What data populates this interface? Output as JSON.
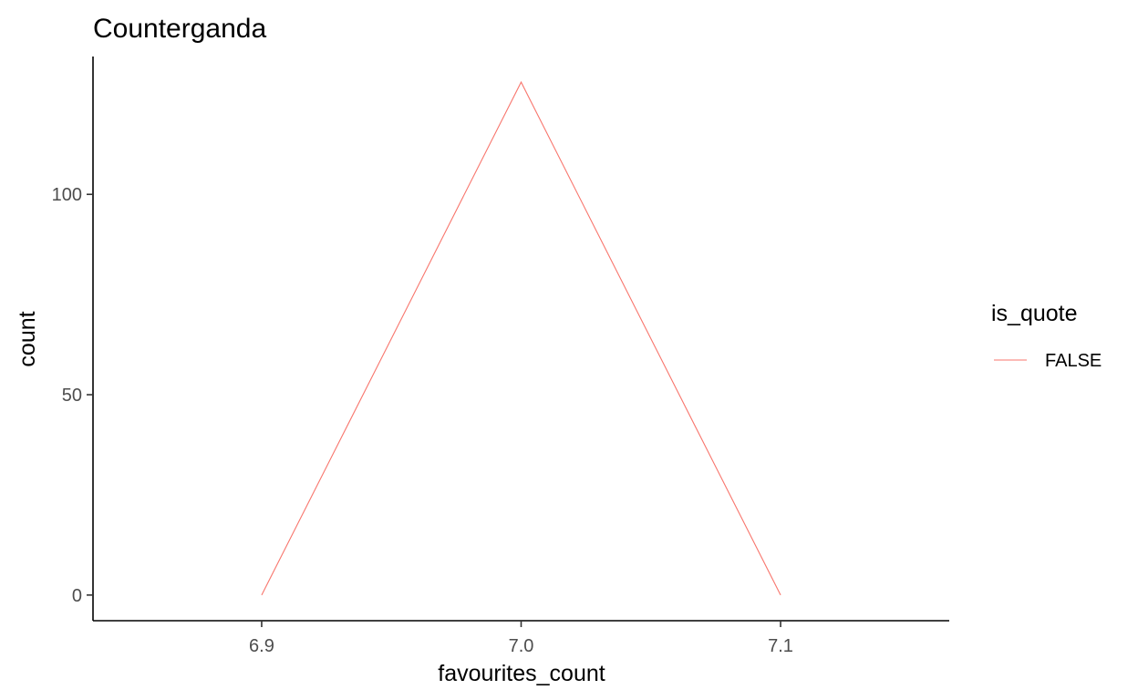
{
  "chart_data": {
    "type": "line",
    "title": "Counterganda",
    "xlabel": "favourites_count",
    "ylabel": "count",
    "xlim": [
      6.835,
      7.165
    ],
    "ylim": [
      -6.4,
      134.4
    ],
    "x_ticks": [
      6.9,
      7.0,
      7.1
    ],
    "x_tick_labels": [
      "6.9",
      "7.0",
      "7.1"
    ],
    "y_ticks": [
      0,
      50,
      100
    ],
    "y_tick_labels": [
      "0",
      "50",
      "100"
    ],
    "grid": false,
    "legend": {
      "title": "is_quote",
      "position": "right",
      "entries": [
        "FALSE"
      ]
    },
    "series": [
      {
        "name": "FALSE",
        "color": "#F8766D",
        "x": [
          6.9,
          7.0,
          7.1
        ],
        "y": [
          0,
          128,
          0
        ]
      }
    ]
  }
}
